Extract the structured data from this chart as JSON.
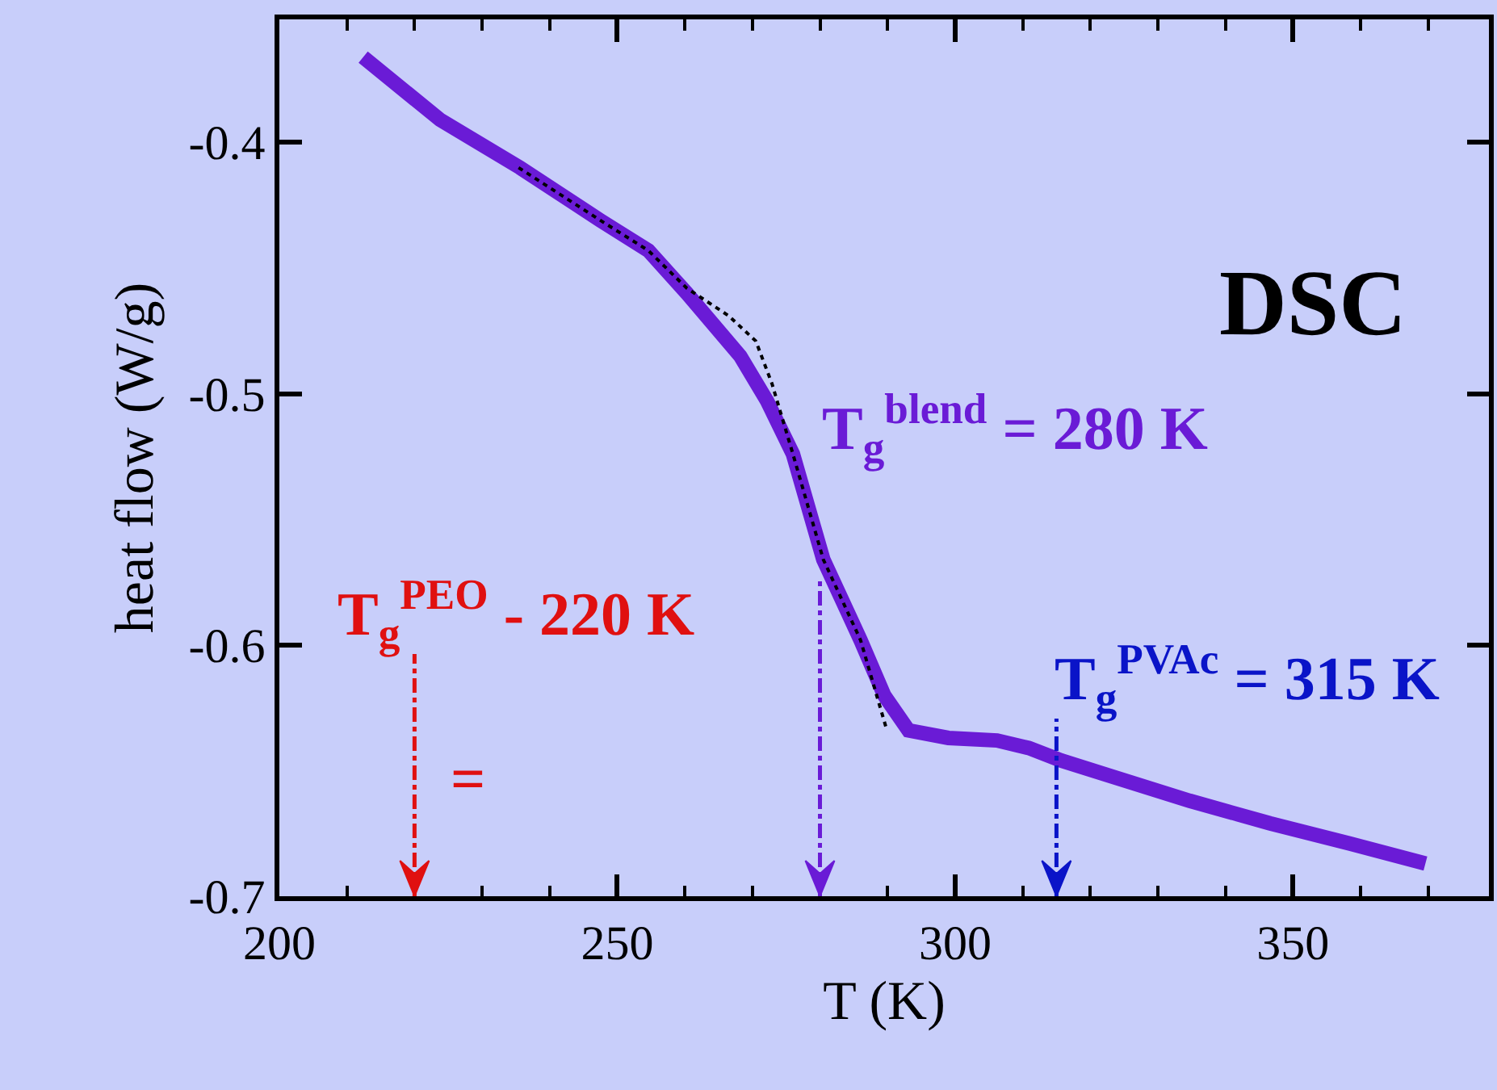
{
  "chart_data": {
    "type": "line",
    "xlabel": "T (K)",
    "ylabel": "heat flow (W/g)",
    "xlim": [
      200,
      379
    ],
    "ylim": [
      -0.7,
      -0.351
    ],
    "xticks": [
      200,
      250,
      300,
      350
    ],
    "yticks": [
      -0.7,
      -0.6,
      -0.5,
      -0.4
    ],
    "grid": false,
    "marker": "none",
    "series": [
      {
        "color": "#6a1bd6",
        "line_style": "solid",
        "x": [
          212.4,
          223.8,
          235.6,
          247.5,
          254.6,
          260.3,
          268.2,
          272.2,
          276.0,
          280.5,
          286.0,
          289.5,
          293.1,
          299.0,
          306.2,
          310.9,
          315.7,
          322.8,
          334.7,
          346.6,
          358.4,
          369.6
        ],
        "values": [
          -0.366,
          -0.391,
          -0.41,
          -0.431,
          -0.443,
          -0.46,
          -0.485,
          -0.503,
          -0.524,
          -0.566,
          -0.598,
          -0.62,
          -0.634,
          -0.637,
          -0.638,
          -0.641,
          -0.646,
          -0.652,
          -0.662,
          -0.671,
          -0.679,
          -0.687
        ]
      },
      {
        "color": "#000000",
        "line_style": "dotted",
        "x": [
          235.4,
          247.5,
          254.6,
          260.3,
          266.5,
          270.5,
          272.9,
          276.0,
          280.5,
          286.0,
          289.8
        ],
        "values": [
          -0.41,
          -0.431,
          -0.443,
          -0.458,
          -0.469,
          -0.479,
          -0.496,
          -0.524,
          -0.566,
          -0.598,
          -0.633
        ]
      }
    ],
    "ref_lines": [
      {
        "axis": "x",
        "value": 220,
        "label": "T$_{g}$$^{PEO}$ - 220 K",
        "color": "#e01010",
        "line_style": "dashed"
      },
      {
        "axis": "x",
        "value": 280,
        "label": "T$_{g}$$^{blend}$ = 280 K",
        "color": "#6a1bd6",
        "line_style": "dashed"
      },
      {
        "axis": "x",
        "value": 315,
        "label": "T$_{g}$$^{PVAc}$ = 315 K",
        "color": "#0a14c8",
        "line_style": "dashed"
      }
    ],
    "annotations": [
      "=",
      "DSC"
    ]
  }
}
